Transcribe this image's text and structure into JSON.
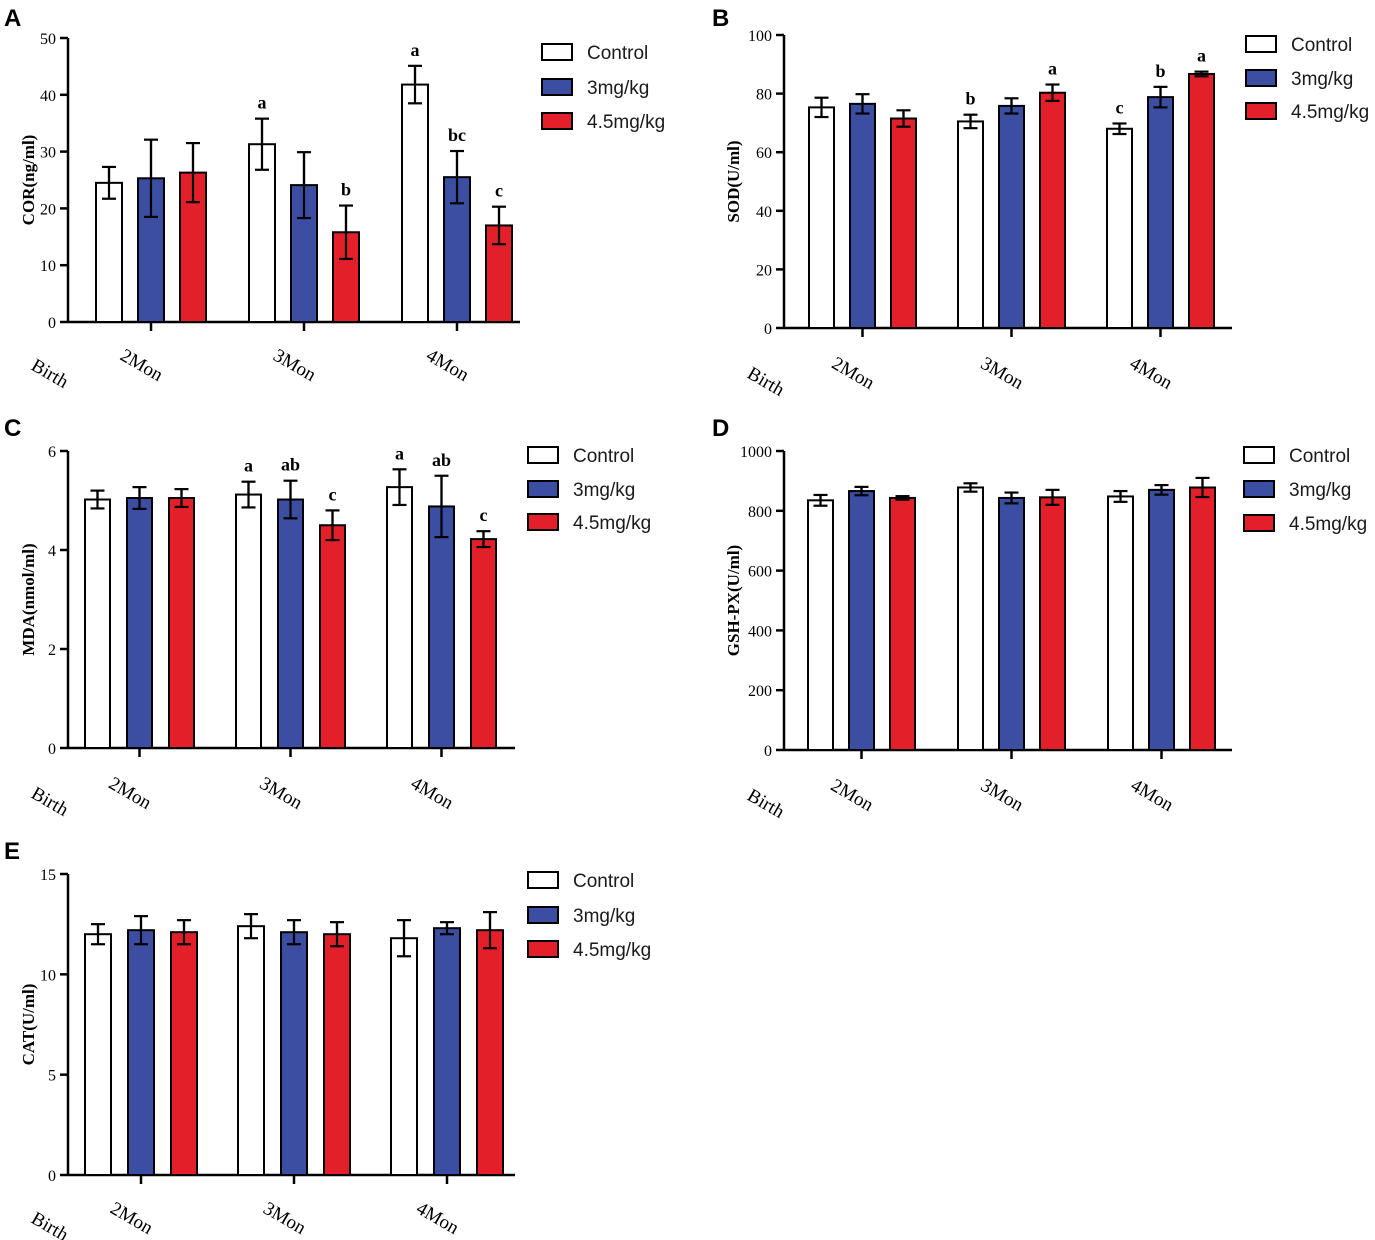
{
  "chart_data": [
    {
      "panel": "A",
      "type": "bar",
      "ylabel": "COR(ng/ml)",
      "ylim": [
        0,
        50
      ],
      "yticks": [
        0,
        10,
        20,
        30,
        40,
        50
      ],
      "categories": [
        "2Mon",
        "3Mon",
        "4Mon"
      ],
      "baseline_label": "Birth",
      "series": [
        {
          "name": "Control",
          "color": "#ffffff",
          "values": [
            24.5,
            31.3,
            41.8
          ],
          "errors": [
            2.8,
            4.5,
            3.3
          ],
          "labels": [
            "",
            "a",
            "a"
          ]
        },
        {
          "name": "3mg/kg",
          "color": "#3b4ea2",
          "values": [
            25.3,
            24.1,
            25.5
          ],
          "errors": [
            6.8,
            5.8,
            4.6
          ],
          "labels": [
            "",
            "",
            "bc"
          ]
        },
        {
          "name": "4.5mg/kg",
          "color": "#e3202a",
          "values": [
            26.3,
            15.8,
            17.0
          ],
          "errors": [
            5.2,
            4.7,
            3.3
          ],
          "labels": [
            "",
            "b",
            "c"
          ]
        }
      ]
    },
    {
      "panel": "B",
      "type": "bar",
      "ylabel": "SOD(U/ml)",
      "ylim": [
        0,
        100
      ],
      "yticks": [
        0,
        20,
        40,
        60,
        80,
        100
      ],
      "categories": [
        "2Mon",
        "3Mon",
        "4Mon"
      ],
      "baseline_label": "Birth",
      "series": [
        {
          "name": "Control",
          "color": "#ffffff",
          "values": [
            75.3,
            70.5,
            68.0
          ],
          "errors": [
            3.3,
            2.3,
            1.8
          ],
          "labels": [
            "",
            "b",
            "c"
          ]
        },
        {
          "name": "3mg/kg",
          "color": "#3b4ea2",
          "values": [
            76.5,
            75.8,
            78.8
          ],
          "errors": [
            3.3,
            2.6,
            3.5
          ],
          "labels": [
            "",
            "",
            "b"
          ]
        },
        {
          "name": "4.5mg/kg",
          "color": "#e3202a",
          "values": [
            71.5,
            80.3,
            86.7
          ],
          "errors": [
            2.8,
            2.8,
            0.8
          ],
          "labels": [
            "",
            "a",
            "a"
          ]
        }
      ]
    },
    {
      "panel": "C",
      "type": "bar",
      "ylabel": "MDA(nmol/ml)",
      "ylim": [
        0,
        6
      ],
      "yticks": [
        0,
        2,
        4,
        6
      ],
      "categories": [
        "2Mon",
        "3Mon",
        "4Mon"
      ],
      "baseline_label": "Birth",
      "series": [
        {
          "name": "Control",
          "color": "#ffffff",
          "values": [
            5.02,
            5.12,
            5.27
          ],
          "errors": [
            0.18,
            0.26,
            0.36
          ],
          "labels": [
            "",
            "a",
            "a"
          ]
        },
        {
          "name": "3mg/kg",
          "color": "#3b4ea2",
          "values": [
            5.05,
            5.02,
            4.88
          ],
          "errors": [
            0.22,
            0.38,
            0.62
          ],
          "labels": [
            "",
            "ab",
            "ab"
          ]
        },
        {
          "name": "4.5mg/kg",
          "color": "#e3202a",
          "values": [
            5.05,
            4.5,
            4.22
          ],
          "errors": [
            0.18,
            0.3,
            0.16
          ],
          "labels": [
            "",
            "c",
            "c"
          ]
        }
      ]
    },
    {
      "panel": "D",
      "type": "bar",
      "ylabel": "GSH-PX(U/ml)",
      "ylim": [
        0,
        1000
      ],
      "yticks": [
        0,
        200,
        400,
        600,
        800,
        1000
      ],
      "categories": [
        "2Mon",
        "3Mon",
        "4Mon"
      ],
      "baseline_label": "Birth",
      "series": [
        {
          "name": "Control",
          "color": "#ffffff",
          "values": [
            835,
            878,
            848
          ],
          "errors": [
            18,
            14,
            18
          ],
          "labels": [
            "",
            "",
            ""
          ]
        },
        {
          "name": "3mg/kg",
          "color": "#3b4ea2",
          "values": [
            866,
            843,
            870
          ],
          "errors": [
            14,
            18,
            16
          ],
          "labels": [
            "",
            "",
            ""
          ]
        },
        {
          "name": "4.5mg/kg",
          "color": "#e3202a",
          "values": [
            843,
            845,
            878
          ],
          "errors": [
            6,
            25,
            32
          ],
          "labels": [
            "",
            "",
            ""
          ]
        }
      ]
    },
    {
      "panel": "E",
      "type": "bar",
      "ylabel": "CAT(U/ml)",
      "ylim": [
        0,
        15
      ],
      "yticks": [
        0,
        5,
        10,
        15
      ],
      "categories": [
        "2Mon",
        "3Mon",
        "4Mon"
      ],
      "baseline_label": "Birth",
      "series": [
        {
          "name": "Control",
          "color": "#ffffff",
          "values": [
            12.0,
            12.4,
            11.8
          ],
          "errors": [
            0.5,
            0.6,
            0.9
          ],
          "labels": [
            "",
            "",
            ""
          ]
        },
        {
          "name": "3mg/kg",
          "color": "#3b4ea2",
          "values": [
            12.2,
            12.1,
            12.3
          ],
          "errors": [
            0.7,
            0.6,
            0.3
          ],
          "labels": [
            "",
            "",
            ""
          ]
        },
        {
          "name": "4.5mg/kg",
          "color": "#e3202a",
          "values": [
            12.1,
            12.0,
            12.2
          ],
          "errors": [
            0.6,
            0.6,
            0.9
          ],
          "labels": [
            "",
            "",
            ""
          ]
        }
      ]
    }
  ]
}
